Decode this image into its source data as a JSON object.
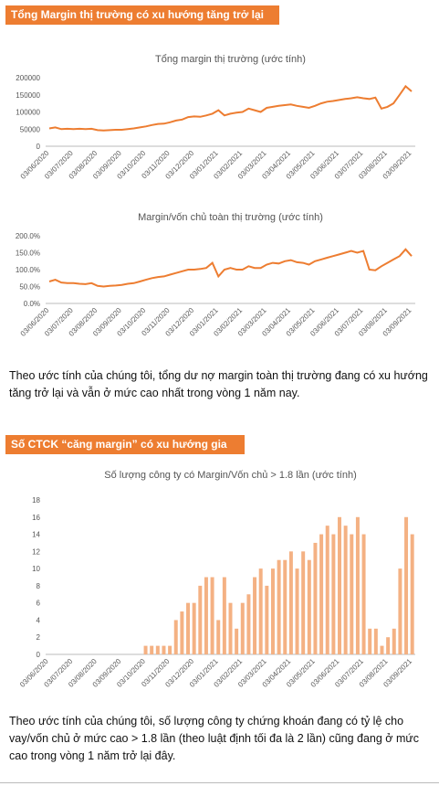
{
  "headings": [
    "Tổng Margin thị trường có xu hướng tăng trở lại",
    "Số CTCK “căng margin” có xu hướng gia tăng"
  ],
  "paragraphs": [
    "Theo ước tính của chúng tôi, tổng dư nợ margin toàn thị trường đang có xu hướng tăng trở lại và vẫn ở mức cao nhất trong vòng 1 năm nay.",
    "Theo ước tính của chúng tôi, số lượng công ty chứng khoán đang có tỷ lệ cho vay/vốn chủ ở mức cao > 1.8 lần (theo luật định tối đa là 2 lần) cũng đang ở mức cao trong vòng 1 năm trở lại đây."
  ],
  "chart_data": [
    {
      "type": "line",
      "title": "Tổng margin thị trường (ước tính)",
      "color": "#ed7d31",
      "grid": false,
      "categories": [
        "03/06/2020",
        null,
        null,
        null,
        "03/07/2020",
        null,
        null,
        null,
        "03/08/2020",
        null,
        null,
        null,
        "03/09/2020",
        null,
        null,
        null,
        "03/10/2020",
        null,
        null,
        null,
        "03/11/2020",
        null,
        null,
        null,
        "03/12/2020",
        null,
        null,
        null,
        "03/01/2021",
        null,
        null,
        null,
        "03/02/2021",
        null,
        null,
        null,
        "03/03/2021",
        null,
        null,
        null,
        "03/04/2021",
        null,
        null,
        null,
        "03/05/2021",
        null,
        null,
        null,
        "03/06/2021",
        null,
        null,
        null,
        "03/07/2021",
        null,
        null,
        null,
        "03/08/2021",
        null,
        null,
        null,
        "03/09/2021"
      ],
      "values": [
        52000,
        55000,
        50000,
        51000,
        50000,
        51000,
        50000,
        51000,
        47000,
        46000,
        47000,
        48000,
        48000,
        50000,
        52000,
        55000,
        58000,
        62000,
        65000,
        66000,
        70000,
        75000,
        78000,
        85000,
        87000,
        86000,
        90000,
        95000,
        105000,
        90000,
        95000,
        98000,
        100000,
        110000,
        105000,
        100000,
        112000,
        115000,
        118000,
        120000,
        122000,
        118000,
        115000,
        112000,
        118000,
        125000,
        130000,
        132000,
        135000,
        138000,
        140000,
        143000,
        140000,
        138000,
        142000,
        110000,
        115000,
        125000,
        150000,
        175000,
        160000
      ],
      "ylim": [
        0,
        200000
      ],
      "yticks": [
        0,
        50000,
        100000,
        150000,
        200000
      ]
    },
    {
      "type": "line",
      "title": "Margin/vốn chủ toàn thị trường (ước tính)",
      "color": "#ed7d31",
      "grid": false,
      "categories": [
        "03/06/2020",
        null,
        null,
        null,
        "03/07/2020",
        null,
        null,
        null,
        "03/08/2020",
        null,
        null,
        null,
        "03/09/2020",
        null,
        null,
        null,
        "03/10/2020",
        null,
        null,
        null,
        "03/11/2020",
        null,
        null,
        null,
        "03/12/2020",
        null,
        null,
        null,
        "03/01/2021",
        null,
        null,
        null,
        "03/02/2021",
        null,
        null,
        null,
        "03/03/2021",
        null,
        null,
        null,
        "03/04/2021",
        null,
        null,
        null,
        "03/05/2021",
        null,
        null,
        null,
        "03/06/2021",
        null,
        null,
        null,
        "03/07/2021",
        null,
        null,
        null,
        "03/08/2021",
        null,
        null,
        null,
        "03/09/2021"
      ],
      "values": [
        65,
        70,
        62,
        60,
        60,
        58,
        57,
        60,
        52,
        50,
        52,
        53,
        55,
        58,
        60,
        65,
        70,
        75,
        78,
        80,
        85,
        90,
        95,
        100,
        100,
        102,
        105,
        120,
        80,
        100,
        105,
        100,
        100,
        110,
        105,
        105,
        115,
        120,
        118,
        125,
        128,
        122,
        120,
        115,
        125,
        130,
        135,
        140,
        145,
        150,
        155,
        150,
        155,
        100,
        98,
        110,
        120,
        130,
        140,
        160,
        140
      ],
      "ylim": [
        0,
        200
      ],
      "yticks": [
        {
          "value": 0,
          "label": "0.0%"
        },
        {
          "value": 50,
          "label": "50.0%"
        },
        {
          "value": 100,
          "label": "100.0%"
        },
        {
          "value": 150,
          "label": "150.0%"
        },
        {
          "value": 200,
          "label": "200.0%"
        }
      ]
    },
    {
      "type": "bar",
      "title": "Số lượng công ty có Margin/Vốn  chủ > 1.8 lần (ước tính)",
      "color": "#f4b183",
      "grid": false,
      "categories": [
        "03/06/2020",
        null,
        null,
        null,
        "03/07/2020",
        null,
        null,
        null,
        "03/08/2020",
        null,
        null,
        null,
        "03/09/2020",
        null,
        null,
        null,
        "03/10/2020",
        null,
        null,
        null,
        "03/11/2020",
        null,
        null,
        null,
        "03/12/2020",
        null,
        null,
        null,
        "03/01/2021",
        null,
        null,
        null,
        "03/02/2021",
        null,
        null,
        null,
        "03/03/2021",
        null,
        null,
        null,
        "03/04/2021",
        null,
        null,
        null,
        "03/05/2021",
        null,
        null,
        null,
        "03/06/2021",
        null,
        null,
        null,
        "03/07/2021",
        null,
        null,
        null,
        "03/08/2021",
        null,
        null,
        null,
        "03/09/2021"
      ],
      "values": [
        0,
        0,
        0,
        0,
        0,
        0,
        0,
        0,
        0,
        0,
        0,
        0,
        0,
        0,
        0,
        0,
        1,
        1,
        1,
        1,
        1,
        4,
        5,
        6,
        6,
        8,
        9,
        9,
        4,
        9,
        6,
        3,
        6,
        7,
        9,
        10,
        8,
        10,
        11,
        11,
        12,
        10,
        12,
        11,
        13,
        14,
        15,
        14,
        16,
        15,
        14,
        16,
        14,
        3,
        3,
        1,
        2,
        3,
        10,
        16,
        14
      ],
      "ylim": [
        0,
        18
      ],
      "yticks": [
        0,
        2,
        4,
        6,
        8,
        10,
        12,
        14,
        16,
        18
      ]
    }
  ]
}
